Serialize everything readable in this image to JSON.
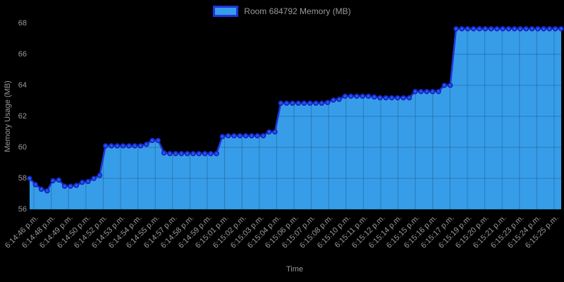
{
  "legend": {
    "label": "Room 684792 Memory (MB)"
  },
  "axes": {
    "x_title": "Time",
    "y_title": "Memory Usage (MB)"
  },
  "chart_data": {
    "type": "area",
    "title": "Room 684792 Memory (MB)",
    "xlabel": "Time",
    "ylabel": "Memory Usage (MB)",
    "ylim": [
      56,
      68
    ],
    "yticks": [
      56,
      58,
      60,
      62,
      64,
      66,
      68
    ],
    "grid": true,
    "legend_position": "top-center",
    "x_tick_labels": [
      "6:14:46 p.m.",
      "6:14:48 p.m.",
      "6:14:49 p.m.",
      "6:14:50 p.m.",
      "6:14:52 p.m.",
      "6:14:53 p.m.",
      "6:14:54 p.m.",
      "6:14:55 p.m.",
      "6:14:57 p.m.",
      "6:14:58 p.m.",
      "6:14:59 p.m.",
      "6:15:01 p.m.",
      "6:15:02 p.m.",
      "6:15:03 p.m.",
      "6:15:04 p.m.",
      "6:15:06 p.m.",
      "6:15:07 p.m.",
      "6:15:08 p.m.",
      "6:15:10 p.m.",
      "6:15:11 p.m.",
      "6:15:12 p.m.",
      "6:15:14 p.m.",
      "6:15:15 p.m.",
      "6:15:16 p.m.",
      "6:15:17 p.m.",
      "6:15:19 p.m.",
      "6:15:20 p.m.",
      "6:15:21 p.m.",
      "6:15:23 p.m.",
      "6:15:24 p.m.",
      "6:15:25 p.m."
    ],
    "series": [
      {
        "name": "Room 684792 Memory (MB)",
        "values": [
          58.0,
          57.6,
          57.3,
          57.2,
          57.85,
          57.9,
          57.5,
          57.5,
          57.55,
          57.75,
          57.8,
          58.0,
          58.2,
          60.1,
          60.1,
          60.1,
          60.1,
          60.1,
          60.1,
          60.1,
          60.2,
          60.45,
          60.45,
          59.65,
          59.6,
          59.6,
          59.6,
          59.6,
          59.6,
          59.6,
          59.6,
          59.6,
          59.6,
          60.7,
          60.75,
          60.75,
          60.75,
          60.75,
          60.75,
          60.75,
          60.75,
          61.0,
          61.0,
          62.85,
          62.85,
          62.85,
          62.85,
          62.85,
          62.85,
          62.85,
          62.85,
          62.9,
          63.05,
          63.1,
          63.3,
          63.3,
          63.3,
          63.3,
          63.3,
          63.25,
          63.2,
          63.2,
          63.2,
          63.2,
          63.2,
          63.2,
          63.6,
          63.6,
          63.6,
          63.6,
          63.6,
          64.0,
          64.0,
          67.65,
          67.65,
          67.65,
          67.65,
          67.65,
          67.65,
          67.65,
          67.65,
          67.65,
          67.65,
          67.65,
          67.65,
          67.65,
          67.65,
          67.65,
          67.65,
          67.65,
          67.65,
          67.65
        ]
      }
    ],
    "colors": {
      "background": "#000000",
      "area_fill": "#379de9",
      "line": "#1d36d9",
      "marker_fill": "#2952e6",
      "marker_stroke": "#101fc0",
      "grid_overlay": "rgba(0,0,0,0.22)",
      "text": "#999999"
    }
  }
}
